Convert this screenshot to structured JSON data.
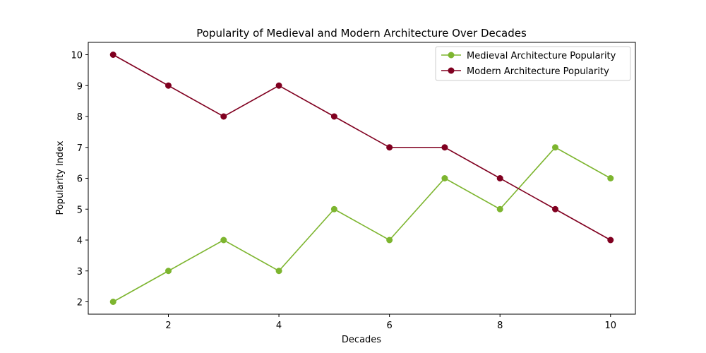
{
  "chart_data": {
    "type": "line",
    "title": "Popularity of Medieval and Modern Architecture Over Decades",
    "xlabel": "Decades",
    "ylabel": "Popularity Index",
    "x": [
      1,
      2,
      3,
      4,
      5,
      6,
      7,
      8,
      9,
      10
    ],
    "xlim": [
      0.55,
      10.45
    ],
    "ylim": [
      1.6,
      10.4
    ],
    "xticks": [
      2,
      4,
      6,
      8,
      10
    ],
    "yticks": [
      2,
      3,
      4,
      5,
      6,
      7,
      8,
      9,
      10
    ],
    "grid": false,
    "legend_position": "top-right",
    "series": [
      {
        "name": "Medieval Architecture Popularity",
        "color": "#7db52f",
        "values": [
          2,
          3,
          4,
          3,
          5,
          4,
          6,
          5,
          7,
          6
        ]
      },
      {
        "name": "Modern Architecture Popularity",
        "color": "#800020",
        "values": [
          10,
          9,
          8,
          9,
          8,
          7,
          7,
          6,
          5,
          4
        ]
      }
    ]
  }
}
